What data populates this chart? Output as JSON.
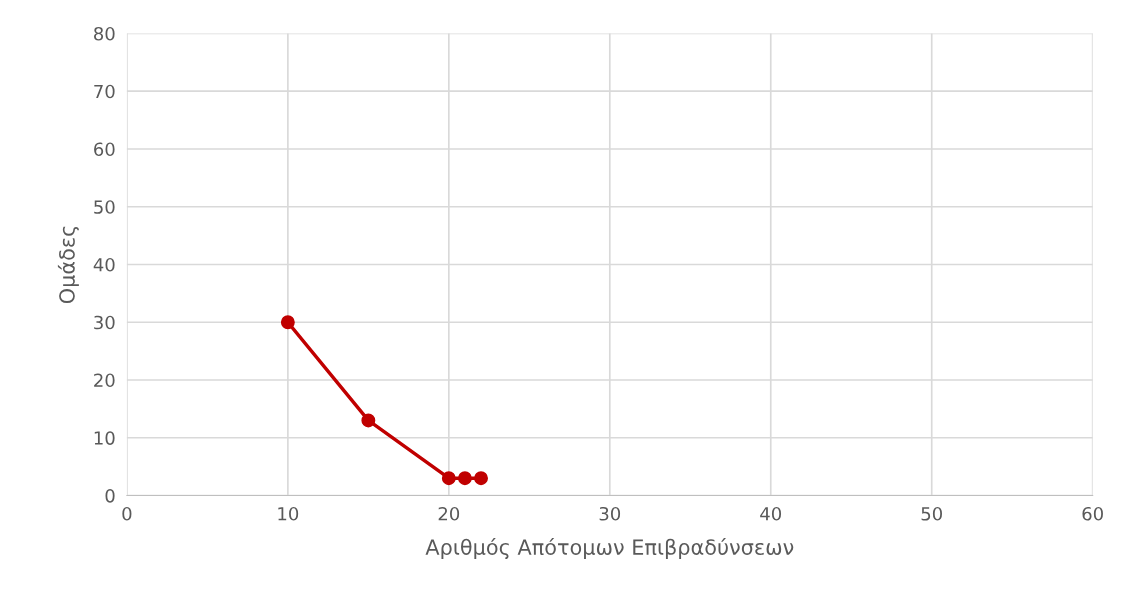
{
  "chart_data": {
    "type": "line",
    "xlabel": "Αριθμός Απότομων Επιβραδύνσεων",
    "ylabel": "Ομάδες",
    "x": [
      10,
      15,
      20,
      21,
      22
    ],
    "series": [
      {
        "color": "#c00000",
        "values": [
          30,
          13,
          3,
          3,
          3
        ]
      }
    ],
    "xlim": [
      0,
      60
    ],
    "xticks": [
      0,
      10,
      20,
      30,
      40,
      50,
      60
    ],
    "ylim": [
      0,
      80
    ],
    "yticks": [
      0,
      10,
      20,
      30,
      40,
      50,
      60,
      70,
      80
    ],
    "grid": true,
    "marker": "circle",
    "line_style": "solid"
  }
}
